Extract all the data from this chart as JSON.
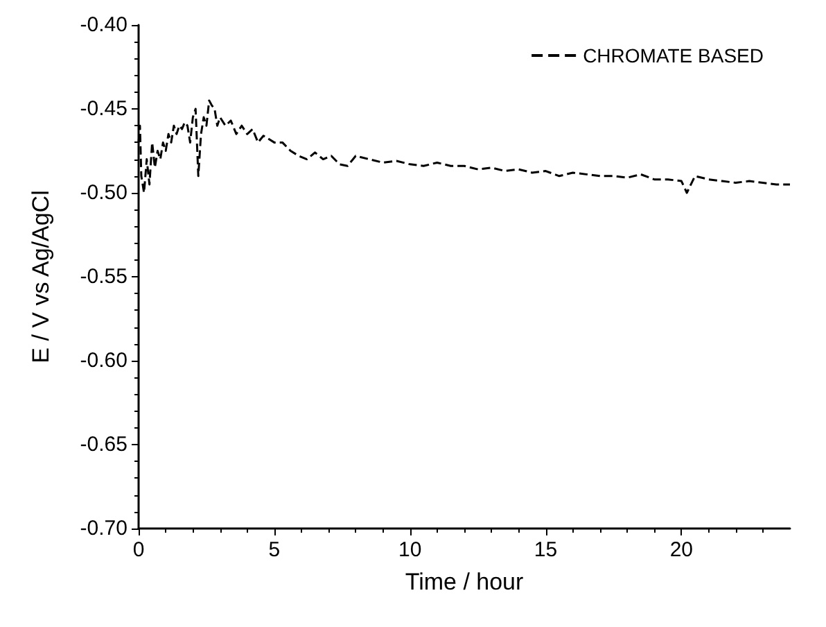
{
  "chart_data": {
    "type": "line",
    "xlabel": "Time / hour",
    "ylabel": "E / V vs Ag/AgCl",
    "xlim": [
      0,
      24
    ],
    "xticks": [
      0,
      5,
      10,
      15,
      20
    ],
    "ylim": [
      -0.7,
      -0.4
    ],
    "yticks": [
      {
        "value": -0.7,
        "label": "-0.70"
      },
      {
        "value": -0.65,
        "label": "-0.65"
      },
      {
        "value": -0.6,
        "label": "-0.60"
      },
      {
        "value": -0.55,
        "label": "-0.55"
      },
      {
        "value": -0.5,
        "label": "-0.50"
      },
      {
        "value": -0.45,
        "label": "-0.45"
      },
      {
        "value": -0.4,
        "label": "-0.40"
      }
    ],
    "grid": false,
    "legend": "top right",
    "line_style": "dashed",
    "marker": "none",
    "series": [
      {
        "name": "CHROMATE BASED",
        "color": "#000000",
        "x": [
          0,
          0.05,
          0.1,
          0.2,
          0.3,
          0.4,
          0.5,
          0.6,
          0.7,
          0.8,
          0.9,
          1.0,
          1.1,
          1.2,
          1.3,
          1.4,
          1.5,
          1.6,
          1.7,
          1.8,
          1.9,
          2.0,
          2.1,
          2.2,
          2.3,
          2.4,
          2.5,
          2.6,
          2.7,
          2.8,
          2.9,
          3.0,
          3.2,
          3.4,
          3.6,
          3.8,
          4.0,
          4.2,
          4.4,
          4.6,
          4.8,
          5.0,
          5.3,
          5.6,
          5.9,
          6.2,
          6.5,
          6.8,
          7.1,
          7.4,
          7.7,
          8.0,
          8.5,
          9,
          9.5,
          10,
          10.5,
          11,
          11.5,
          12,
          12.5,
          13,
          13.5,
          14,
          14.5,
          15,
          15.5,
          16,
          16.5,
          17,
          17.5,
          18,
          18.5,
          19,
          19.5,
          20,
          20.2,
          20.5,
          21,
          21.5,
          22,
          22.5,
          23,
          23.5,
          24
        ],
        "values": [
          -0.47,
          -0.46,
          -0.49,
          -0.5,
          -0.48,
          -0.495,
          -0.47,
          -0.485,
          -0.475,
          -0.48,
          -0.47,
          -0.475,
          -0.465,
          -0.47,
          -0.46,
          -0.465,
          -0.46,
          -0.462,
          -0.458,
          -0.46,
          -0.47,
          -0.455,
          -0.45,
          -0.49,
          -0.465,
          -0.455,
          -0.46,
          -0.445,
          -0.448,
          -0.45,
          -0.46,
          -0.455,
          -0.46,
          -0.457,
          -0.465,
          -0.46,
          -0.465,
          -0.462,
          -0.47,
          -0.466,
          -0.468,
          -0.47,
          -0.47,
          -0.475,
          -0.478,
          -0.48,
          -0.476,
          -0.48,
          -0.478,
          -0.483,
          -0.484,
          -0.478,
          -0.48,
          -0.482,
          -0.481,
          -0.483,
          -0.484,
          -0.482,
          -0.484,
          -0.484,
          -0.486,
          -0.485,
          -0.487,
          -0.486,
          -0.488,
          -0.487,
          -0.49,
          -0.488,
          -0.489,
          -0.49,
          -0.49,
          -0.491,
          -0.489,
          -0.492,
          -0.492,
          -0.493,
          -0.5,
          -0.49,
          -0.492,
          -0.493,
          -0.494,
          -0.493,
          -0.494,
          -0.495,
          -0.495
        ]
      }
    ]
  }
}
